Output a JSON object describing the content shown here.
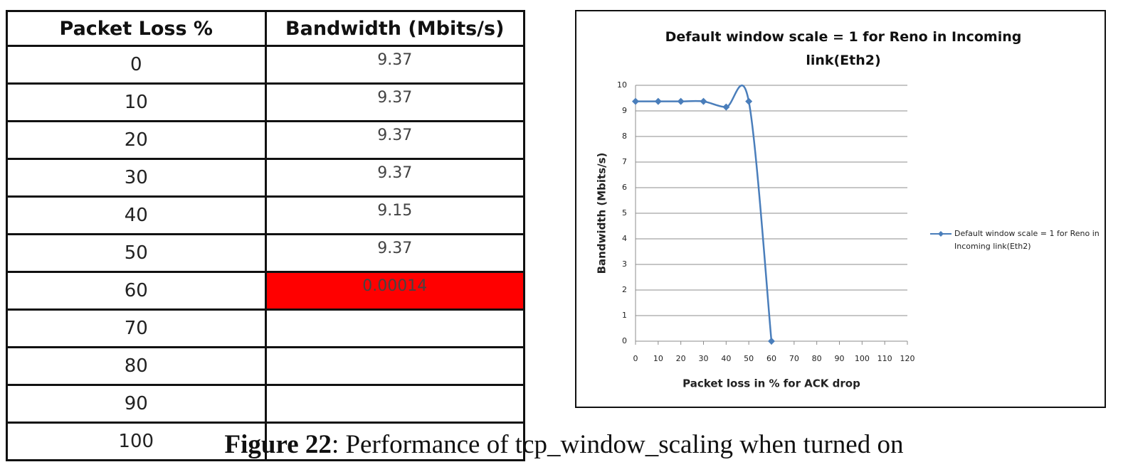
{
  "table": {
    "header": [
      "Packet Loss %",
      "Bandwidth (Mbits/s)"
    ],
    "rows": [
      [
        "0",
        "9.37"
      ],
      [
        "10",
        "9.37"
      ],
      [
        "20",
        "9.37"
      ],
      [
        "30",
        "9.37"
      ],
      [
        "40",
        "9.15"
      ],
      [
        "50",
        "9.37"
      ],
      [
        "60",
        "0.00014"
      ],
      [
        "70"
      ],
      [
        "80"
      ],
      [
        "90"
      ],
      [
        "100"
      ]
    ],
    "highlight": {
      "row": 6,
      "column": 1,
      "color": "#ff0000"
    }
  },
  "chart_data": {
    "type": "line",
    "title": "Default window scale = 1 for Reno in Incoming link(Eth2)",
    "x_label": "Packet loss in % for ACK drop",
    "y_label": "Bandwidth (Mbits/s)",
    "x": [
      0,
      10,
      20,
      30,
      40,
      50,
      60
    ],
    "series": [
      {
        "name": "Default window scale = 1 for Reno in Incoming link(Eth2)",
        "color": "#4a7ebb",
        "values": [
          9.37,
          9.37,
          9.37,
          9.37,
          9.15,
          9.37,
          0.00014
        ]
      }
    ],
    "xlim": [
      0,
      120
    ],
    "xticks": [
      0,
      10,
      20,
      30,
      40,
      50,
      60,
      70,
      80,
      90,
      100,
      110,
      120
    ],
    "ylim": [
      0,
      10
    ],
    "yticks": [
      0,
      1,
      2,
      3,
      4,
      5,
      6,
      7,
      8,
      9,
      10
    ],
    "grid": true,
    "smooth": true,
    "legend": "right"
  },
  "caption": {
    "label": "Figure 22",
    "text": ": Performance  of tcp_window_scaling  when  turned  on"
  }
}
